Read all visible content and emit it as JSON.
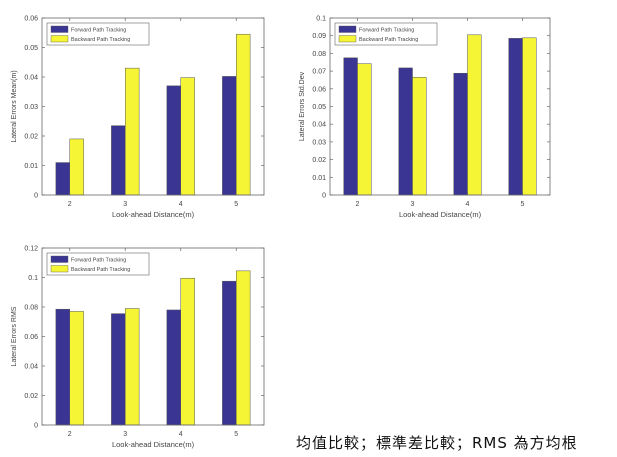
{
  "colors": {
    "forward": "#3a3592",
    "backward": "#f5f535"
  },
  "caption": "均值比較；標準差比較；RMS 為方均根",
  "chart_data": [
    {
      "type": "bar",
      "categories": [
        "2",
        "3",
        "4",
        "5"
      ],
      "series": [
        {
          "name": "Forward Path Tracking",
          "values": [
            0.011,
            0.0235,
            0.037,
            0.0402
          ]
        },
        {
          "name": "Backward Path Tracking",
          "values": [
            0.019,
            0.043,
            0.0398,
            0.0545
          ]
        }
      ],
      "xlabel": "Look-ahead Distance(m)",
      "ylabel": "Lateral Errors Mean(m)",
      "ylim": [
        0,
        0.06
      ],
      "yticks": [
        "0",
        "0.01",
        "0.02",
        "0.03",
        "0.04",
        "0.05",
        "0.06"
      ],
      "legend": "top-left",
      "grid": false
    },
    {
      "type": "bar",
      "categories": [
        "2",
        "3",
        "4",
        "5"
      ],
      "series": [
        {
          "name": "Forward Path Tracking",
          "values": [
            0.0775,
            0.0718,
            0.0688,
            0.0885
          ]
        },
        {
          "name": "Backward Path Tracking",
          "values": [
            0.0742,
            0.0665,
            0.0905,
            0.0888
          ]
        }
      ],
      "xlabel": "Look-ahead Distance(m)",
      "ylabel": "Lateral Errors Std.Dev",
      "ylim": [
        0,
        0.1
      ],
      "yticks": [
        "0",
        "0.01",
        "0.02",
        "0.03",
        "0.04",
        "0.05",
        "0.06",
        "0.07",
        "0.08",
        "0.09",
        "0.1"
      ],
      "legend": "top-left",
      "grid": false
    },
    {
      "type": "bar",
      "categories": [
        "2",
        "3",
        "4",
        "5"
      ],
      "series": [
        {
          "name": "Forward Path Tracking",
          "values": [
            0.0785,
            0.0755,
            0.078,
            0.0975
          ]
        },
        {
          "name": "Backward Path Tracking",
          "values": [
            0.077,
            0.079,
            0.0995,
            0.1045
          ]
        }
      ],
      "xlabel": "Look-ahead Distance(m)",
      "ylabel": "Lateral Errors RMS",
      "ylim": [
        0,
        0.12
      ],
      "yticks": [
        "0",
        "0.02",
        "0.04",
        "0.06",
        "0.08",
        "0.1",
        "0.12"
      ],
      "legend": "top-left",
      "grid": false
    }
  ]
}
